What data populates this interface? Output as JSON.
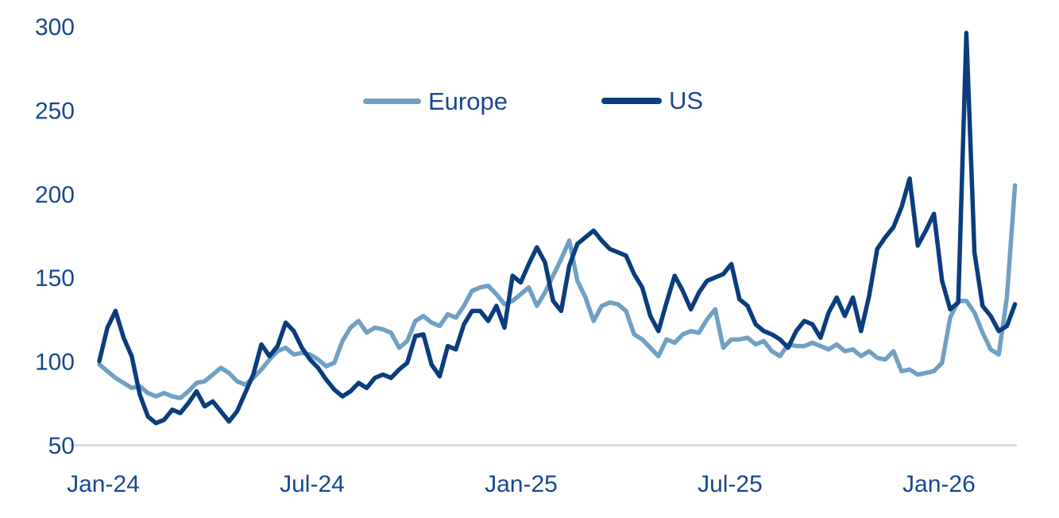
{
  "chart_data": {
    "type": "line",
    "title": "",
    "x_tick_labels": [
      "Jan-24",
      "Jul-24",
      "Jan-25",
      "Jul-25",
      "Jan-26"
    ],
    "y_ticks": [
      300,
      250,
      200,
      150,
      100,
      50
    ],
    "ylim": [
      50,
      300
    ],
    "x_range_months": 26.2,
    "frequency": "weekly",
    "grid": "off",
    "legend_position": "top-center",
    "colors": {
      "europe_line": "#6FA0C4",
      "us_line": "#0A3D7D",
      "axis_label": "#1A4691",
      "axis_line": "#D9D9D9"
    },
    "series": [
      {
        "name": "Europe",
        "color": "#6FA0C4",
        "values": [
          98,
          94,
          90,
          87,
          84,
          85,
          81,
          79,
          81,
          79,
          78,
          82,
          87,
          88,
          92,
          96,
          93,
          88,
          86,
          90,
          95,
          101,
          106,
          108,
          104,
          105,
          104,
          101,
          97,
          99,
          112,
          120,
          124,
          117,
          120,
          119,
          117,
          108,
          112,
          124,
          127,
          123,
          121,
          128,
          126,
          133,
          142,
          144,
          145,
          140,
          134,
          136,
          140,
          144,
          133,
          141,
          151,
          161,
          172,
          148,
          138,
          124,
          133,
          135,
          134,
          130,
          116,
          113,
          108,
          103,
          113,
          111,
          116,
          118,
          117,
          125,
          131,
          108,
          113,
          113,
          114,
          110,
          112,
          106,
          103,
          110,
          109,
          109,
          111,
          109,
          107,
          110,
          106,
          107,
          103,
          106,
          102,
          101,
          106,
          94,
          95,
          92,
          93,
          94,
          99,
          126,
          136,
          136,
          129,
          117,
          107,
          104,
          138,
          205
        ]
      },
      {
        "name": "US",
        "color": "#0A3D7D",
        "values": [
          100,
          120,
          130,
          114,
          103,
          80,
          67,
          63,
          65,
          71,
          69,
          75,
          82,
          73,
          76,
          70,
          64,
          70,
          81,
          92,
          110,
          103,
          109,
          123,
          118,
          108,
          101,
          96,
          89,
          83,
          79,
          82,
          87,
          84,
          90,
          92,
          90,
          95,
          99,
          115,
          116,
          98,
          91,
          109,
          107,
          122,
          130,
          130,
          124,
          133,
          120,
          151,
          147,
          158,
          168,
          159,
          136,
          130,
          157,
          170,
          174,
          178,
          172,
          167,
          165,
          163,
          152,
          144,
          127,
          118,
          135,
          151,
          142,
          131,
          141,
          148,
          150,
          152,
          158,
          137,
          133,
          122,
          118,
          116,
          113,
          108,
          118,
          124,
          122,
          114,
          129,
          138,
          127,
          138,
          118,
          139,
          167,
          174,
          180,
          192,
          209,
          169,
          178,
          188,
          148,
          131,
          135,
          296,
          165,
          133,
          127,
          118,
          121,
          134
        ]
      }
    ]
  }
}
